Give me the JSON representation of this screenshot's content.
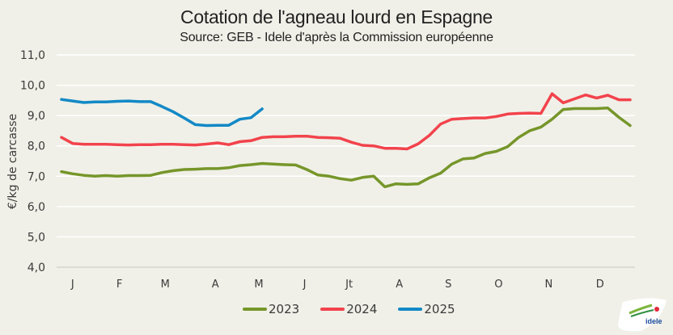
{
  "chart_data": {
    "type": "line",
    "title": "Cotation de l'agneau lourd en Espagne",
    "subtitle": "Source: GEB - Idele d'après la Commission européenne",
    "xlabel": "",
    "ylabel": "€/kg de carcasse",
    "ylim": [
      4.0,
      11.0
    ],
    "yticks": [
      "4,0",
      "5,0",
      "6,0",
      "7,0",
      "8,0",
      "9,0",
      "10,0",
      "11,0"
    ],
    "ytick_values": [
      4,
      5,
      6,
      7,
      8,
      9,
      10,
      11
    ],
    "x_unit": "week",
    "x_range": [
      1,
      52
    ],
    "grid": true,
    "legend_position": "bottom",
    "month_labels": [
      "J",
      "F",
      "M",
      "A",
      "M",
      "J",
      "Jt",
      "A",
      "S",
      "O",
      "N",
      "D"
    ],
    "month_label_weeks": [
      2,
      6.2,
      10.3,
      14.8,
      18.7,
      22.8,
      26.8,
      31.3,
      35.7,
      40.2,
      44.7,
      49.3
    ],
    "series": [
      {
        "name": "2023",
        "color": "#76962a",
        "weeks": [
          1,
          2,
          3,
          4,
          5,
          6,
          7,
          8,
          9,
          10,
          11,
          12,
          13,
          14,
          15,
          16,
          17,
          18,
          19,
          20,
          21,
          22,
          23,
          24,
          25,
          26,
          27,
          28,
          29,
          30,
          31,
          32,
          33,
          34,
          35,
          36,
          37,
          38,
          39,
          40,
          41,
          42,
          43,
          44,
          45,
          46,
          47,
          48,
          49,
          50,
          51,
          52
        ],
        "values": [
          7.15,
          7.08,
          7.03,
          7.0,
          7.02,
          7.0,
          7.02,
          7.02,
          7.03,
          7.12,
          7.18,
          7.22,
          7.23,
          7.25,
          7.25,
          7.28,
          7.35,
          7.38,
          7.42,
          7.4,
          7.38,
          7.37,
          7.22,
          7.04,
          7.0,
          6.92,
          6.87,
          6.96,
          7.0,
          6.65,
          6.75,
          6.73,
          6.75,
          6.95,
          7.1,
          7.4,
          7.57,
          7.6,
          7.75,
          7.82,
          7.97,
          8.28,
          8.5,
          8.62,
          8.88,
          9.2,
          9.23,
          9.23,
          9.23,
          9.25,
          8.94,
          8.67
        ]
      },
      {
        "name": "2024",
        "color": "#f2434c",
        "weeks": [
          1,
          2,
          3,
          4,
          5,
          6,
          7,
          8,
          9,
          10,
          11,
          12,
          13,
          14,
          15,
          16,
          17,
          18,
          19,
          20,
          21,
          22,
          23,
          24,
          25,
          26,
          27,
          28,
          29,
          30,
          31,
          32,
          33,
          34,
          35,
          36,
          37,
          38,
          39,
          40,
          41,
          42,
          43,
          44,
          45,
          46,
          47,
          48,
          49,
          50,
          51,
          52
        ],
        "values": [
          8.28,
          8.08,
          8.05,
          8.05,
          8.05,
          8.04,
          8.03,
          8.04,
          8.04,
          8.05,
          8.05,
          8.04,
          8.03,
          8.06,
          8.1,
          8.04,
          8.14,
          8.17,
          8.28,
          8.3,
          8.3,
          8.32,
          8.32,
          8.28,
          8.27,
          8.25,
          8.12,
          8.02,
          8.0,
          7.92,
          7.92,
          7.9,
          8.07,
          8.35,
          8.72,
          8.88,
          8.9,
          8.92,
          8.92,
          8.97,
          9.05,
          9.07,
          9.08,
          9.07,
          9.72,
          9.42,
          9.55,
          9.68,
          9.58,
          9.67,
          9.52,
          9.52
        ]
      },
      {
        "name": "2025",
        "color": "#1389c6",
        "weeks": [
          1,
          2,
          3,
          4,
          5,
          6,
          7,
          8,
          9,
          10,
          11,
          12,
          13,
          14,
          15,
          16,
          17,
          18,
          19
        ],
        "values": [
          9.53,
          9.48,
          9.43,
          9.45,
          9.45,
          9.47,
          9.48,
          9.46,
          9.46,
          9.3,
          9.13,
          8.92,
          8.7,
          8.67,
          8.68,
          8.68,
          8.88,
          8.93,
          9.22
        ]
      }
    ]
  },
  "logo": {
    "text": "idele",
    "subtext": "INSTITUT DE L'ÉLEVAGE"
  }
}
